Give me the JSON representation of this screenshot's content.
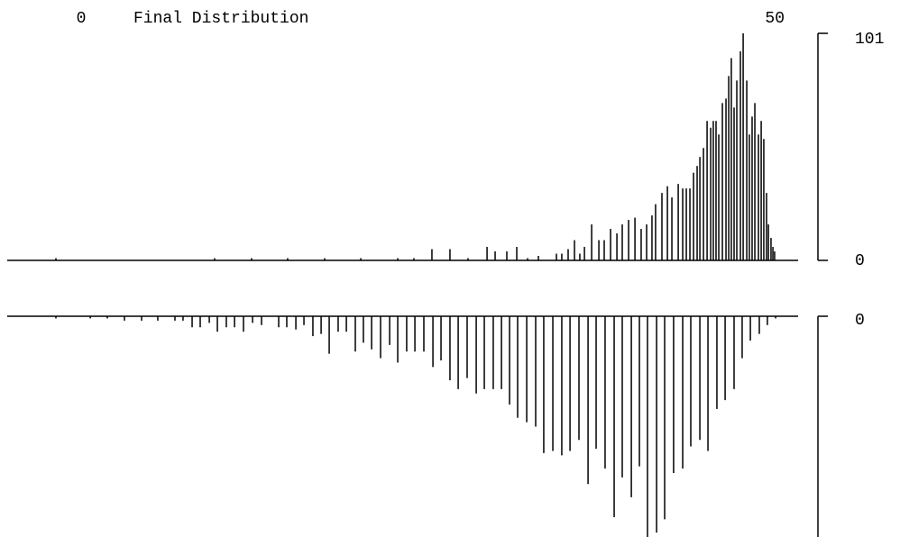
{
  "chart_data": [
    {
      "type": "bar",
      "title": "Final Distribution",
      "xlim": [
        0,
        50
      ],
      "xticks": [
        0,
        50
      ],
      "ylim": [
        0,
        101
      ],
      "yticks": [
        0,
        101
      ],
      "color": "#000000",
      "x": [
        0,
        11,
        13.56,
        16.06,
        18.63,
        21.13,
        23.69,
        24.81,
        26.06,
        27.31,
        28.56,
        29.88,
        30.44,
        31.25,
        31.94,
        32.69,
        33.44,
        34.69,
        35.06,
        35.5,
        35.94,
        36.31,
        36.63,
        37.13,
        37.63,
        38,
        38.44,
        38.88,
        39.25,
        39.69,
        40.13,
        40.56,
        40.94,
        41.31,
        41.56,
        42,
        42.38,
        42.69,
        43.13,
        43.44,
        43.69,
        43.94,
        44.19,
        44.44,
        44.63,
        44.88,
        45.13,
        45.38,
        45.56,
        45.75,
        45.94,
        46.19,
        46.44,
        46.63,
        46.81,
        47,
        47.19,
        47.44,
        47.63,
        47.88,
        48.06,
        48.25,
        48.44,
        48.69,
        48.88,
        49.06,
        49.25,
        49.38,
        49.56,
        49.69,
        49.81
      ],
      "values": [
        1,
        1,
        1,
        1,
        1,
        1,
        1,
        1,
        5,
        5,
        1,
        6,
        4,
        4,
        6,
        1,
        2,
        3,
        3,
        5,
        9,
        3,
        6,
        16,
        9,
        9,
        14,
        12,
        16,
        18,
        19,
        14,
        16,
        20,
        25,
        30,
        33,
        28,
        34,
        32,
        32,
        32,
        39,
        42,
        46,
        50,
        62,
        59,
        62,
        62,
        56,
        70,
        72,
        82,
        90,
        68,
        80,
        93,
        101,
        80,
        56,
        64,
        70,
        56,
        62,
        54,
        30,
        16,
        10,
        6,
        4
      ]
    },
    {
      "type": "bar",
      "y_inverted": true,
      "xlim": [
        0,
        50
      ],
      "ylim": [
        0,
        100
      ],
      "yticks": [
        0
      ],
      "color": "#000000",
      "x": [
        0,
        2.38,
        3.56,
        4.75,
        5.94,
        7.06,
        8.25,
        8.81,
        9.44,
        10,
        10.63,
        11.19,
        11.81,
        12.38,
        13,
        13.63,
        14.25,
        15.44,
        16,
        16.63,
        17.19,
        17.81,
        18.38,
        18.94,
        19.56,
        20.13,
        20.75,
        21.31,
        21.88,
        22.5,
        23.13,
        23.69,
        24.31,
        24.88,
        25.5,
        26.13,
        26.69,
        27.31,
        27.88,
        28.5,
        29.13,
        29.69,
        30.31,
        30.88,
        31.44,
        32,
        32.63,
        33.25,
        33.81,
        34.44,
        35.06,
        35.63,
        36.25,
        36.88,
        37.44,
        38.06,
        38.69,
        39.25,
        39.88,
        40.44,
        41,
        41.63,
        42.19,
        42.81,
        43.44,
        44,
        44.63,
        45.19,
        45.81,
        46.38,
        47,
        47.56,
        48.13,
        48.75,
        49.31,
        49.88
      ],
      "values": [
        1,
        1,
        1,
        2,
        2,
        2,
        2,
        2,
        5,
        5,
        3,
        7,
        5,
        5,
        7,
        3,
        4,
        5,
        5,
        6,
        4,
        9,
        8,
        17,
        7,
        7,
        16,
        12,
        15,
        19,
        13,
        21,
        16,
        16,
        16,
        23,
        20,
        29,
        33,
        28,
        35,
        33,
        33,
        33,
        40,
        46,
        48,
        50,
        62,
        61,
        63,
        61,
        56,
        76,
        60,
        69,
        91,
        73,
        82,
        68,
        100,
        98,
        92,
        71,
        69,
        59,
        56,
        61,
        42,
        38,
        33,
        19,
        11,
        8,
        4,
        1
      ]
    }
  ]
}
